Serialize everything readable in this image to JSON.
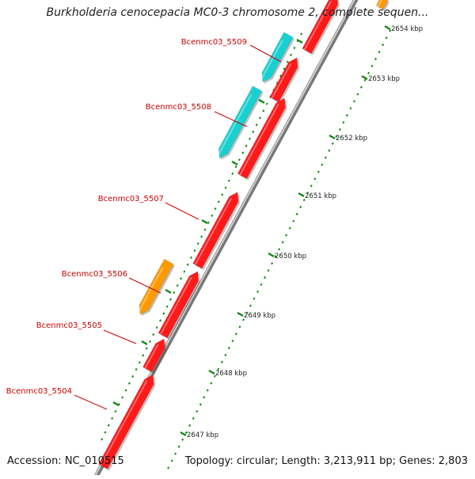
{
  "title": "Burkholderia cenocepacia MC0-3 chromosome 2, complete sequen...",
  "footer": {
    "accession": "Accession: NC_010515",
    "summary": "Topology: circular; Length: 3,213,911 bp; Genes: 2,803"
  },
  "colors": {
    "forward_gene": "#ff1a1a",
    "reverse_gene": "#19d0d0",
    "highlight_gene": "#ff9900",
    "ruler": "#118811",
    "backbone": "#999999",
    "gene_label": "#cc0000",
    "blue_gene": "#1f1fcc"
  },
  "genes": [
    {
      "label": "Bcenmc03_5509"
    },
    {
      "label": "Bcenmc03_5508"
    },
    {
      "label": "Bcenmc03_5507"
    },
    {
      "label": "Bcenmc03_5506"
    },
    {
      "label": "Bcenmc03_5505"
    },
    {
      "label": "Bcenmc03_5504"
    }
  ],
  "ruler_ticks": [
    {
      "label": "2654 kbp"
    },
    {
      "label": "2653 kbp"
    },
    {
      "label": "2652 kbp"
    },
    {
      "label": "2651 kbp"
    },
    {
      "label": "2650 kbp"
    },
    {
      "label": "2649 kbp"
    },
    {
      "label": "2648 kbp"
    },
    {
      "label": "2647 kbp"
    }
  ]
}
